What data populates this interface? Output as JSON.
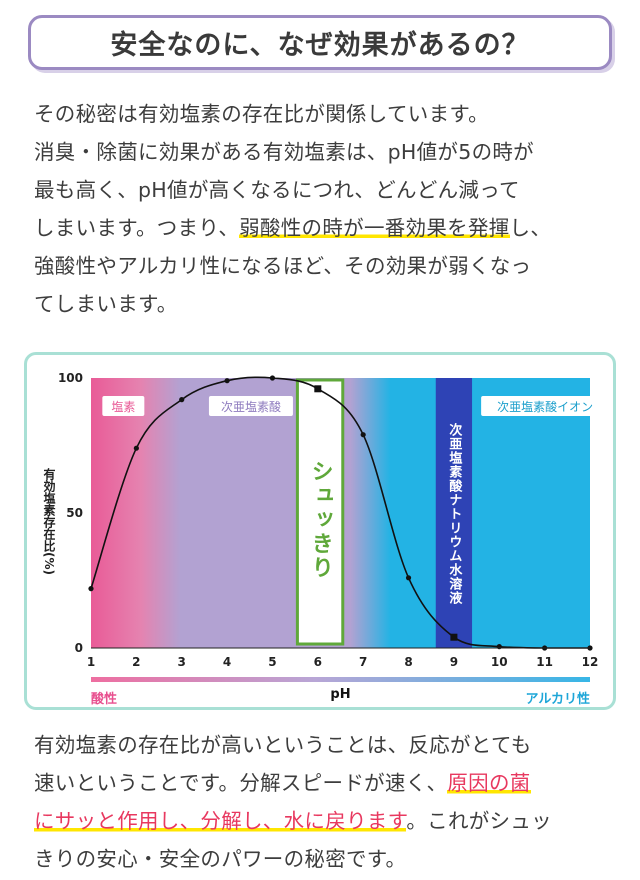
{
  "title": "安全なのに、なぜ効果があるの？",
  "intro": {
    "line1": "その秘密は有効塩素の存在比が関係しています。",
    "line2": "消臭・除菌に効果がある有効塩素は、pH値が5の時が",
    "line3": "最も高く、pH値が高くなるにつれ、どんどん減って",
    "line4a": "しまいます。つまり、",
    "line4_highlight": "弱酸性の時が一番効果を発揮",
    "line4b": "し、",
    "line5": "強酸性やアルカリ性になるほど、その効果が弱くなっ",
    "line6": "てしまいます。"
  },
  "chart_data": {
    "type": "line",
    "title": "",
    "xlabel": "pH",
    "ylabel": "有効塩素存在比(%)",
    "xlim": [
      1,
      12
    ],
    "ylim": [
      0,
      100
    ],
    "x_ticks": [
      "1",
      "2",
      "3",
      "4",
      "5",
      "6",
      "7",
      "8",
      "9",
      "10",
      "11",
      "12"
    ],
    "y_ticks": [
      "0",
      "50",
      "100"
    ],
    "series": [
      {
        "x": [
          1,
          2,
          3,
          4,
          5,
          6,
          7,
          8,
          9,
          10,
          11,
          12
        ],
        "y": [
          22,
          74,
          92,
          99,
          100,
          96,
          79,
          26,
          4,
          0.5,
          0,
          0
        ]
      }
    ],
    "regions": [
      {
        "label": "塩素",
        "from": 1,
        "to": 2.6,
        "color": "#e95b97"
      },
      {
        "label": "次亜塩素酸",
        "from": 2.6,
        "to": 7.2,
        "color": "#b2a2d2"
      },
      {
        "label": "次亜塩素酸ナトリウム水溶液",
        "from": 8.6,
        "to": 9.4,
        "color": "#2e43b5"
      },
      {
        "label": "次亜塩素酸イオン",
        "from": 9.4,
        "to": 12,
        "color": "#23b3e4"
      }
    ],
    "product_band": {
      "label": "シュッきり",
      "from": 5.55,
      "to": 6.55,
      "color": "#5fa83a"
    },
    "scale": {
      "left_label": "酸性",
      "center_label": "pH",
      "right_label": "アルカリ性"
    }
  },
  "outro": {
    "line1": "有効塩素の存在比が高いということは、反応がとても",
    "line2a": "速いということです。分解スピードが速く、",
    "line2_highlight": "原因の菌",
    "line3_highlight": "にサッと作用し、分解し、水に戻ります",
    "line3b": "。これがシュッ",
    "line4": "きりの安心・安全のパワーの秘密です。"
  }
}
